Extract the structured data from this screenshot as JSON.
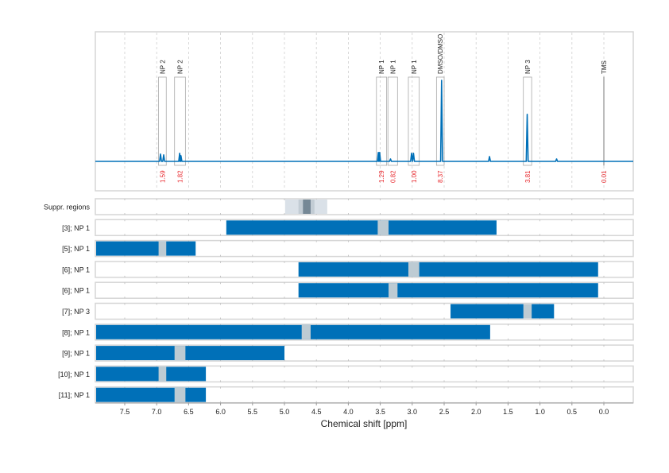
{
  "chart_data": {
    "type": "nmr-spectrum-with-ranges",
    "xlabel": "Chemical shift [ppm]",
    "xlim": [
      7.96,
      -0.46
    ],
    "x_reversed": true,
    "x_ticks": [
      7.5,
      7.0,
      6.5,
      6.0,
      5.5,
      5.0,
      4.5,
      4.0,
      3.5,
      3.0,
      2.5,
      2.0,
      1.5,
      1.0,
      0.5,
      0.0
    ],
    "x_tick_labels": [
      "7.5",
      "7.0",
      "6.5",
      "6.0",
      "5.5",
      "5.0",
      "4.5",
      "4.0",
      "3.5",
      "3.0",
      "2.5",
      "2.0",
      "1.5",
      "1.0",
      "0.5",
      "0.0"
    ],
    "grid": true,
    "spectrum_color": "#0070b8",
    "spectrum_peaks": [
      {
        "ppm": 6.94,
        "intensity": 9
      },
      {
        "ppm": 6.89,
        "intensity": 8
      },
      {
        "ppm": 6.64,
        "intensity": 10
      },
      {
        "ppm": 6.62,
        "intensity": 7
      },
      {
        "ppm": 3.53,
        "intensity": 11
      },
      {
        "ppm": 3.51,
        "intensity": 11
      },
      {
        "ppm": 3.34,
        "intensity": 3
      },
      {
        "ppm": 3.01,
        "intensity": 10
      },
      {
        "ppm": 2.98,
        "intensity": 10
      },
      {
        "ppm": 2.54,
        "intensity": 100
      },
      {
        "ppm": 1.79,
        "intensity": 6
      },
      {
        "ppm": 1.2,
        "intensity": 58
      },
      {
        "ppm": 0.74,
        "intensity": 3
      }
    ],
    "annotations": [
      {
        "label": "NP 2",
        "range": [
          6.97,
          6.85
        ],
        "integral": "1.59"
      },
      {
        "label": "NP 2",
        "range": [
          6.72,
          6.55
        ],
        "integral": "1.82"
      },
      {
        "label": "NP 1",
        "range": [
          3.56,
          3.4
        ],
        "integral": "1.29"
      },
      {
        "label": "NP 1",
        "range": [
          3.38,
          3.23
        ],
        "integral": "0.82"
      },
      {
        "label": "NP 1",
        "range": [
          3.06,
          2.89
        ],
        "integral": "1.00"
      },
      {
        "label": "DMSO/DMSO",
        "range": [
          2.62,
          2.5
        ],
        "integral": "8.37"
      },
      {
        "label": "NP 3",
        "range": [
          1.26,
          1.13
        ],
        "integral": "3.81"
      },
      {
        "label": "TMS",
        "range": [
          0.005,
          -0.005
        ],
        "integral": "0.01"
      }
    ],
    "integral_color": "#e8262b",
    "suppression": {
      "label": "Suppr. regions",
      "bands": [
        {
          "range": [
            4.99,
            4.33
          ],
          "color": "#dae1e8"
        },
        {
          "range": [
            4.78,
            4.53
          ],
          "color": "#c2ccd4"
        },
        {
          "range": [
            4.71,
            4.59
          ],
          "color": "#758896"
        }
      ]
    },
    "range_color": "#0070b8",
    "gap_color": "#bdcbd3",
    "rows": [
      {
        "label": "[3]; NP 1",
        "range": [
          5.91,
          1.68
        ],
        "gap": [
          3.54,
          3.37
        ]
      },
      {
        "label": "[5]; NP 1",
        "range": [
          7.96,
          6.39
        ],
        "gap": [
          6.97,
          6.85
        ]
      },
      {
        "label": "[6]; NP 1",
        "range": [
          4.78,
          0.09
        ],
        "gap": [
          3.06,
          2.89
        ]
      },
      {
        "label": "[6]; NP 1",
        "range": [
          4.78,
          0.09
        ],
        "gap": [
          3.37,
          3.23
        ]
      },
      {
        "label": "[7]; NP 3",
        "range": [
          2.4,
          0.78
        ],
        "gap": [
          1.26,
          1.13
        ]
      },
      {
        "label": "[8]; NP 1",
        "range": [
          7.96,
          1.78
        ],
        "gap": [
          4.73,
          4.59
        ]
      },
      {
        "label": "[9]; NP 1",
        "range": [
          7.96,
          5.0
        ],
        "gap": [
          6.72,
          6.55
        ]
      },
      {
        "label": "[10]; NP 1",
        "range": [
          7.96,
          6.23
        ],
        "gap": [
          6.97,
          6.85
        ]
      },
      {
        "label": "[11]; NP 1",
        "range": [
          7.96,
          6.23
        ],
        "gap": [
          6.72,
          6.55
        ]
      }
    ]
  }
}
